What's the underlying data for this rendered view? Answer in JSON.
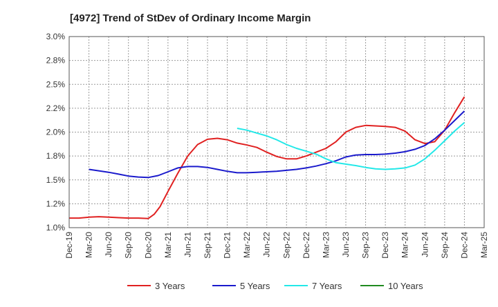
{
  "chart_data": {
    "type": "line",
    "title": "[4972]  Trend of StDev of Ordinary Income Margin",
    "xlabel": "",
    "ylabel": "",
    "ylim": [
      1.0,
      3.0
    ],
    "y_ticks": [
      1.0,
      1.25,
      1.5,
      1.75,
      2.0,
      2.25,
      2.5,
      2.75,
      3.0
    ],
    "y_tick_labels": [
      "1.0%",
      "1.2%",
      "1.5%",
      "1.8%",
      "2.0%",
      "2.2%",
      "2.5%",
      "2.8%",
      "3.0%"
    ],
    "x_tick_labels": [
      "Dec-19",
      "Mar-20",
      "Jun-20",
      "Sep-20",
      "Dec-20",
      "Mar-21",
      "Jun-21",
      "Sep-21",
      "Dec-21",
      "Mar-22",
      "Jun-22",
      "Sep-22",
      "Dec-22",
      "Mar-23",
      "Jun-23",
      "Sep-23",
      "Dec-23",
      "Mar-24",
      "Jun-24",
      "Sep-24",
      "Dec-24",
      "Mar-25"
    ],
    "grid": true,
    "legend_position": "bottom",
    "series": [
      {
        "name": "3 Years",
        "color": "#e02020",
        "points": [
          [
            0,
            1.1
          ],
          [
            0.5,
            1.1
          ],
          [
            1,
            1.11
          ],
          [
            1.5,
            1.115
          ],
          [
            2,
            1.11
          ],
          [
            2.5,
            1.105
          ],
          [
            3,
            1.1
          ],
          [
            3.5,
            1.1
          ],
          [
            4,
            1.095
          ],
          [
            4.3,
            1.14
          ],
          [
            4.6,
            1.22
          ],
          [
            5,
            1.38
          ],
          [
            5.5,
            1.57
          ],
          [
            6,
            1.75
          ],
          [
            6.5,
            1.87
          ],
          [
            7,
            1.925
          ],
          [
            7.5,
            1.935
          ],
          [
            8,
            1.92
          ],
          [
            8.5,
            1.885
          ],
          [
            9,
            1.865
          ],
          [
            9.5,
            1.84
          ],
          [
            10,
            1.79
          ],
          [
            10.5,
            1.745
          ],
          [
            11,
            1.72
          ],
          [
            11.5,
            1.72
          ],
          [
            12,
            1.75
          ],
          [
            12.5,
            1.79
          ],
          [
            13,
            1.83
          ],
          [
            13.5,
            1.9
          ],
          [
            14,
            2.0
          ],
          [
            14.5,
            2.05
          ],
          [
            15,
            2.07
          ],
          [
            15.5,
            2.065
          ],
          [
            16,
            2.06
          ],
          [
            16.5,
            2.05
          ],
          [
            17,
            2.01
          ],
          [
            17.5,
            1.92
          ],
          [
            18,
            1.88
          ],
          [
            18.5,
            1.9
          ],
          [
            19,
            2.02
          ],
          [
            19.5,
            2.2
          ],
          [
            20,
            2.37
          ]
        ]
      },
      {
        "name": "5 Years",
        "color": "#1a1acc",
        "points": [
          [
            1,
            1.61
          ],
          [
            1.5,
            1.595
          ],
          [
            2,
            1.58
          ],
          [
            2.5,
            1.56
          ],
          [
            3,
            1.54
          ],
          [
            3.5,
            1.53
          ],
          [
            4,
            1.525
          ],
          [
            4.5,
            1.545
          ],
          [
            5,
            1.585
          ],
          [
            5.5,
            1.625
          ],
          [
            6,
            1.64
          ],
          [
            6.5,
            1.64
          ],
          [
            7,
            1.63
          ],
          [
            7.5,
            1.61
          ],
          [
            8,
            1.59
          ],
          [
            8.5,
            1.575
          ],
          [
            9,
            1.575
          ],
          [
            9.5,
            1.58
          ],
          [
            10,
            1.585
          ],
          [
            10.5,
            1.59
          ],
          [
            11,
            1.6
          ],
          [
            11.5,
            1.61
          ],
          [
            12,
            1.625
          ],
          [
            12.5,
            1.645
          ],
          [
            13,
            1.67
          ],
          [
            13.5,
            1.7
          ],
          [
            14,
            1.74
          ],
          [
            14.5,
            1.76
          ],
          [
            15,
            1.765
          ],
          [
            15.5,
            1.765
          ],
          [
            16,
            1.77
          ],
          [
            16.5,
            1.78
          ],
          [
            17,
            1.795
          ],
          [
            17.5,
            1.82
          ],
          [
            18,
            1.86
          ],
          [
            18.5,
            1.93
          ],
          [
            19,
            2.02
          ],
          [
            19.5,
            2.12
          ],
          [
            20,
            2.22
          ]
        ]
      },
      {
        "name": "7 Years",
        "color": "#22e8e8",
        "points": [
          [
            8.5,
            2.04
          ],
          [
            9,
            2.02
          ],
          [
            9.5,
            1.99
          ],
          [
            10,
            1.96
          ],
          [
            10.5,
            1.92
          ],
          [
            11,
            1.87
          ],
          [
            11.5,
            1.83
          ],
          [
            12,
            1.8
          ],
          [
            12.5,
            1.77
          ],
          [
            13,
            1.72
          ],
          [
            13.5,
            1.68
          ],
          [
            14,
            1.665
          ],
          [
            14.5,
            1.65
          ],
          [
            15,
            1.63
          ],
          [
            15.5,
            1.615
          ],
          [
            16,
            1.61
          ],
          [
            16.5,
            1.615
          ],
          [
            17,
            1.625
          ],
          [
            17.5,
            1.655
          ],
          [
            18,
            1.72
          ],
          [
            18.5,
            1.81
          ],
          [
            19,
            1.91
          ],
          [
            19.5,
            2.01
          ],
          [
            20,
            2.1
          ]
        ]
      },
      {
        "name": "10 Years",
        "color": "#1f8a1f",
        "points": []
      }
    ]
  }
}
